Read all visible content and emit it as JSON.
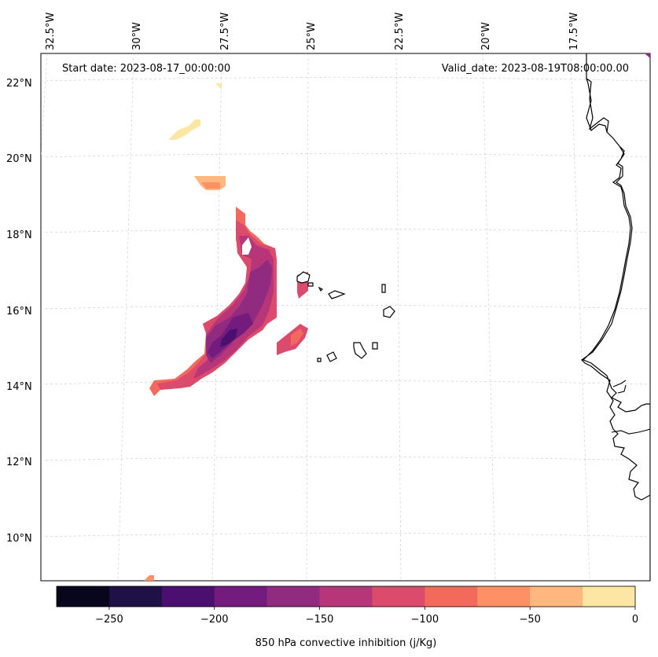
{
  "map": {
    "start_date": "Start date: 2023-08-17_00:00:00",
    "valid_date": "Valid_date: 2023-08-19T08:00:00.00",
    "lon_labels": [
      "32.5°W",
      "30°W",
      "27.5°W",
      "25°W",
      "22.5°W",
      "20°W",
      "17.5°W"
    ],
    "lat_labels": [
      "22°N",
      "20°N",
      "18°N",
      "16°N",
      "14°N",
      "12°N",
      "10°N"
    ]
  },
  "colorbar": {
    "label": "850 hPa convective inhibition (j/Kg)",
    "ticks": [
      "−250",
      "−200",
      "−150",
      "−100",
      "−50",
      "0"
    ],
    "colors": [
      "#07061c",
      "#1f1146",
      "#4b0f6f",
      "#731c7e",
      "#912b80",
      "#b63679",
      "#dc4a6c",
      "#f3695c",
      "#fe9065",
      "#feb87f",
      "#fde5a3"
    ]
  }
}
